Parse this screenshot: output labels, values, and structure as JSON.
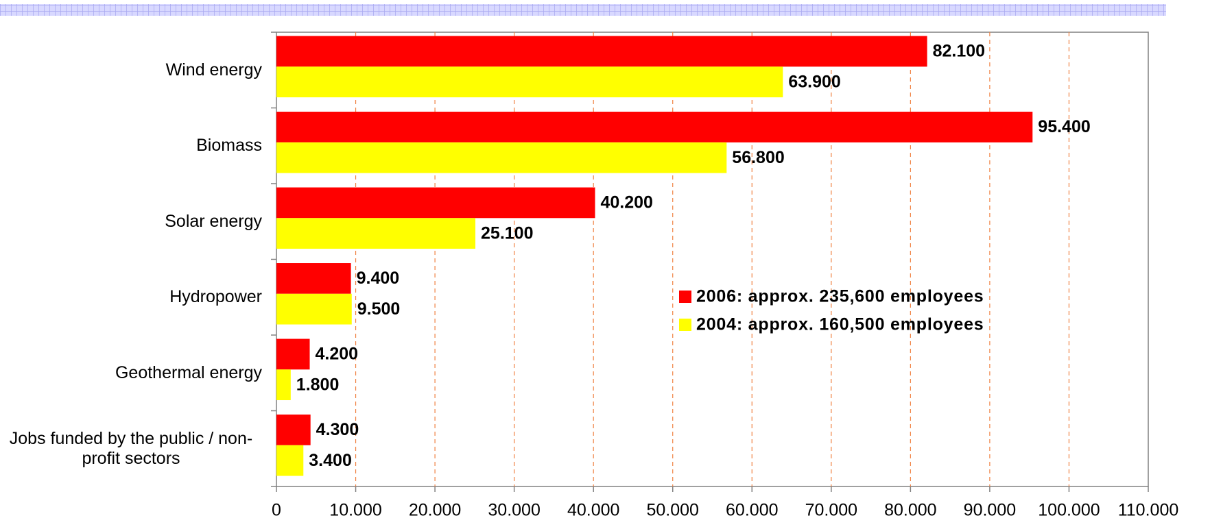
{
  "chart_data": {
    "type": "bar",
    "orientation": "horizontal",
    "categories": [
      "Wind energy",
      "Biomass",
      "Solar energy",
      "Hydropower",
      "Geothermal energy",
      "Jobs funded by the public / non-profit sectors"
    ],
    "series": [
      {
        "name": "2006: approx. 235,600 employees",
        "color": "#ff0000",
        "values": [
          82100,
          95400,
          40200,
          9400,
          4200,
          4300
        ],
        "value_labels": [
          "82.100",
          "95.400",
          "40.200",
          "9.400",
          "4.200",
          "4.300"
        ]
      },
      {
        "name": "2004: approx. 160,500 employees",
        "color": "#ffff00",
        "values": [
          63900,
          56800,
          25100,
          9500,
          1800,
          3400
        ],
        "value_labels": [
          "63.900",
          "56.800",
          "25.100",
          "9.500",
          "1.800",
          "3.400"
        ]
      }
    ],
    "xlim": [
      0,
      110000
    ],
    "xticks": [
      0,
      {
        "value": 10000,
        "label": "10.000"
      },
      {
        "value": 20000,
        "label": "20.000"
      },
      {
        "value": 30000,
        "label": "30.000"
      },
      {
        "value": 40000,
        "label": "40.000"
      },
      {
        "value": 50000,
        "label": "50.000"
      },
      {
        "value": 60000,
        "label": "60.000"
      },
      {
        "value": 70000,
        "label": "70.000"
      },
      {
        "value": 80000,
        "label": "80.000"
      },
      {
        "value": 90000,
        "label": "90.000"
      },
      {
        "value": 100000,
        "label": "100.000"
      },
      {
        "value": 110000,
        "label": "110.000"
      }
    ],
    "grid": true,
    "legend": "center"
  }
}
